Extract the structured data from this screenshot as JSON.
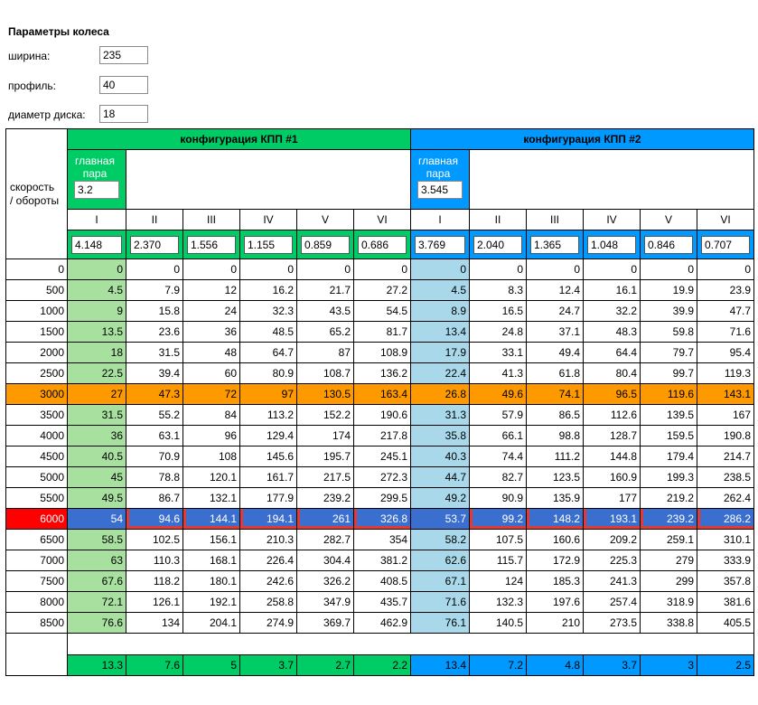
{
  "params": {
    "title": "Параметры колеса",
    "width_label": "ширина:",
    "width_value": "235",
    "profile_label": "профиль:",
    "profile_value": "40",
    "disk_label": "диаметр диска:",
    "disk_value": "18"
  },
  "corner_label": "скорость\n/ обороты",
  "config1": {
    "title": "конфигурация КПП #1",
    "main_pair_label": "главная пара",
    "main_pair_value": "3.2",
    "gears": [
      "I",
      "II",
      "III",
      "IV",
      "V",
      "VI"
    ],
    "ratios": [
      "4.148",
      "2.370",
      "1.556",
      "1.155",
      "0.859",
      "0.686"
    ]
  },
  "config2": {
    "title": "конфигурация КПП #2",
    "main_pair_label": "главная пара",
    "main_pair_value": "3.545",
    "gears": [
      "I",
      "II",
      "III",
      "IV",
      "V",
      "VI"
    ],
    "ratios": [
      "3.769",
      "2.040",
      "1.365",
      "1.048",
      "0.846",
      "0.707"
    ]
  },
  "rows": [
    {
      "rpm": "0",
      "c1": [
        "0",
        "0",
        "0",
        "0",
        "0",
        "0"
      ],
      "c2": [
        "0",
        "0",
        "0",
        "0",
        "0",
        "0"
      ]
    },
    {
      "rpm": "500",
      "c1": [
        "4.5",
        "7.9",
        "12",
        "16.2",
        "21.7",
        "27.2"
      ],
      "c2": [
        "4.5",
        "8.3",
        "12.4",
        "16.1",
        "19.9",
        "23.9"
      ]
    },
    {
      "rpm": "1000",
      "c1": [
        "9",
        "15.8",
        "24",
        "32.3",
        "43.5",
        "54.5"
      ],
      "c2": [
        "8.9",
        "16.5",
        "24.7",
        "32.2",
        "39.9",
        "47.7"
      ]
    },
    {
      "rpm": "1500",
      "c1": [
        "13.5",
        "23.6",
        "36",
        "48.5",
        "65.2",
        "81.7"
      ],
      "c2": [
        "13.4",
        "24.8",
        "37.1",
        "48.3",
        "59.8",
        "71.6"
      ]
    },
    {
      "rpm": "2000",
      "c1": [
        "18",
        "31.5",
        "48",
        "64.7",
        "87",
        "108.9"
      ],
      "c2": [
        "17.9",
        "33.1",
        "49.4",
        "64.4",
        "79.7",
        "95.4"
      ]
    },
    {
      "rpm": "2500",
      "c1": [
        "22.5",
        "39.4",
        "60",
        "80.9",
        "108.7",
        "136.2"
      ],
      "c2": [
        "22.4",
        "41.3",
        "61.8",
        "80.4",
        "99.7",
        "119.3"
      ]
    },
    {
      "rpm": "3000",
      "c1": [
        "27",
        "47.3",
        "72",
        "97",
        "130.5",
        "163.4"
      ],
      "c2": [
        "26.8",
        "49.6",
        "74.1",
        "96.5",
        "119.6",
        "143.1"
      ]
    },
    {
      "rpm": "3500",
      "c1": [
        "31.5",
        "55.2",
        "84",
        "113.2",
        "152.2",
        "190.6"
      ],
      "c2": [
        "31.3",
        "57.9",
        "86.5",
        "112.6",
        "139.5",
        "167"
      ]
    },
    {
      "rpm": "4000",
      "c1": [
        "36",
        "63.1",
        "96",
        "129.4",
        "174",
        "217.8"
      ],
      "c2": [
        "35.8",
        "66.1",
        "98.8",
        "128.7",
        "159.5",
        "190.8"
      ]
    },
    {
      "rpm": "4500",
      "c1": [
        "40.5",
        "70.9",
        "108",
        "145.6",
        "195.7",
        "245.1"
      ],
      "c2": [
        "40.3",
        "74.4",
        "111.2",
        "144.8",
        "179.4",
        "214.7"
      ]
    },
    {
      "rpm": "5000",
      "c1": [
        "45",
        "78.8",
        "120.1",
        "161.7",
        "217.5",
        "272.3"
      ],
      "c2": [
        "44.7",
        "82.7",
        "123.5",
        "160.9",
        "199.3",
        "238.5"
      ]
    },
    {
      "rpm": "5500",
      "c1": [
        "49.5",
        "86.7",
        "132.1",
        "177.9",
        "239.2",
        "299.5"
      ],
      "c2": [
        "49.2",
        "90.9",
        "135.9",
        "177",
        "219.2",
        "262.4"
      ]
    },
    {
      "rpm": "6000",
      "c1": [
        "54",
        "94.6",
        "144.1",
        "194.1",
        "261",
        "326.8"
      ],
      "c2": [
        "53.7",
        "99.2",
        "148.2",
        "193.1",
        "239.2",
        "286.2"
      ]
    },
    {
      "rpm": "6500",
      "c1": [
        "58.5",
        "102.5",
        "156.1",
        "210.3",
        "282.7",
        "354"
      ],
      "c2": [
        "58.2",
        "107.5",
        "160.6",
        "209.2",
        "259.1",
        "310.1"
      ]
    },
    {
      "rpm": "7000",
      "c1": [
        "63",
        "110.3",
        "168.1",
        "226.4",
        "304.4",
        "381.2"
      ],
      "c2": [
        "62.6",
        "115.7",
        "172.9",
        "225.3",
        "279",
        "333.9"
      ]
    },
    {
      "rpm": "7500",
      "c1": [
        "67.6",
        "118.2",
        "180.1",
        "242.6",
        "326.2",
        "408.5"
      ],
      "c2": [
        "67.1",
        "124",
        "185.3",
        "241.3",
        "299",
        "357.8"
      ]
    },
    {
      "rpm": "8000",
      "c1": [
        "72.1",
        "126.1",
        "192.1",
        "258.8",
        "347.9",
        "435.7"
      ],
      "c2": [
        "71.6",
        "132.3",
        "197.6",
        "257.4",
        "318.9",
        "381.6"
      ]
    },
    {
      "rpm": "8500",
      "c1": [
        "76.6",
        "134",
        "204.1",
        "274.9",
        "369.7",
        "462.9"
      ],
      "c2": [
        "76.1",
        "140.5",
        "210",
        "273.5",
        "338.8",
        "405.5"
      ]
    }
  ],
  "highlight_orange_rpm": "3000",
  "highlight_selected_rpm": "6000",
  "summary": {
    "c1": [
      "13.3",
      "7.6",
      "5",
      "3.7",
      "2.7",
      "2.2"
    ],
    "c2": [
      "13.4",
      "7.2",
      "4.8",
      "3.7",
      "3",
      "2.5"
    ]
  },
  "colors": {
    "config1": "#00cc66",
    "config2": "#0099ff",
    "orange_row": "#ff9900",
    "selected_row": "#3a6fd0",
    "selected_rpm": "#ff0000"
  }
}
